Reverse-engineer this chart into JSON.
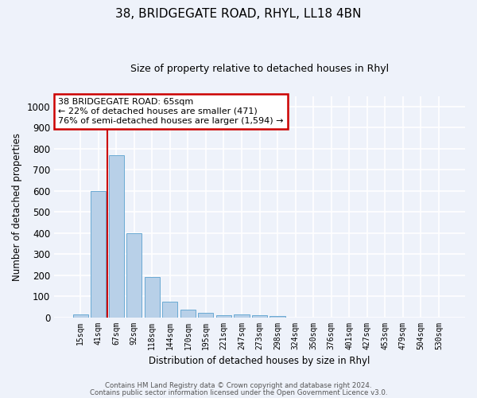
{
  "title1": "38, BRIDGEGATE ROAD, RHYL, LL18 4BN",
  "title2": "Size of property relative to detached houses in Rhyl",
  "xlabel": "Distribution of detached houses by size in Rhyl",
  "ylabel": "Number of detached properties",
  "categories": [
    "15sqm",
    "41sqm",
    "67sqm",
    "92sqm",
    "118sqm",
    "144sqm",
    "170sqm",
    "195sqm",
    "221sqm",
    "247sqm",
    "273sqm",
    "298sqm",
    "324sqm",
    "350sqm",
    "376sqm",
    "401sqm",
    "427sqm",
    "453sqm",
    "479sqm",
    "504sqm",
    "530sqm"
  ],
  "values": [
    15,
    600,
    770,
    400,
    190,
    75,
    35,
    20,
    10,
    12,
    10,
    5,
    0,
    0,
    0,
    0,
    0,
    0,
    0,
    0,
    0
  ],
  "bar_color": "#b8d0e8",
  "bar_edge_color": "#6aaad4",
  "vline_color": "#cc0000",
  "annotation_text": "38 BRIDGEGATE ROAD: 65sqm\n← 22% of detached houses are smaller (471)\n76% of semi-detached houses are larger (1,594) →",
  "annotation_box_color": "#ffffff",
  "annotation_box_edge": "#cc0000",
  "ylim": [
    0,
    1050
  ],
  "yticks": [
    0,
    100,
    200,
    300,
    400,
    500,
    600,
    700,
    800,
    900,
    1000
  ],
  "footer1": "Contains HM Land Registry data © Crown copyright and database right 2024.",
  "footer2": "Contains public sector information licensed under the Open Government Licence v3.0.",
  "bg_color": "#eef2fa",
  "plot_bg_color": "#eef2fa"
}
